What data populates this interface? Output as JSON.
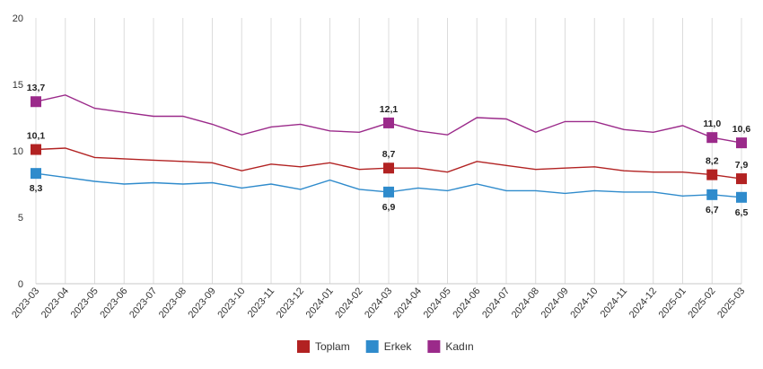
{
  "chart_data": {
    "type": "line",
    "yticks": [
      "0",
      "5",
      "10",
      "15",
      "20"
    ],
    "ylim": [
      0,
      20
    ],
    "grid": "vertical",
    "legend_placement": "bottom-center",
    "categories": [
      "2023-03",
      "2023-04",
      "2023-05",
      "2023-06",
      "2023-07",
      "2023-08",
      "2023-09",
      "2023-10",
      "2023-11",
      "2023-12",
      "2024-01",
      "2024-02",
      "2024-03",
      "2024-04",
      "2024-05",
      "2024-06",
      "2024-07",
      "2024-08",
      "2024-09",
      "2024-10",
      "2024-11",
      "2024-12",
      "2025-01",
      "2025-02",
      "2025-03"
    ],
    "series": [
      {
        "name": "Toplam",
        "color": "#b22222",
        "values": [
          10.1,
          10.2,
          9.5,
          9.4,
          9.3,
          9.2,
          9.1,
          8.5,
          9.0,
          8.8,
          9.1,
          8.6,
          8.7,
          8.7,
          8.4,
          9.2,
          8.9,
          8.6,
          8.7,
          8.8,
          8.5,
          8.4,
          8.4,
          8.2,
          7.9
        ],
        "markers": [
          0,
          12,
          23,
          24
        ],
        "labels": [
          {
            "index": 0,
            "text": "10,1",
            "pos": "above"
          },
          {
            "index": 12,
            "text": "8,7",
            "pos": "above"
          },
          {
            "index": 23,
            "text": "8,2",
            "pos": "above"
          },
          {
            "index": 24,
            "text": "7,9",
            "pos": "above"
          }
        ]
      },
      {
        "name": "Erkek",
        "color": "#2f8bcc",
        "values": [
          8.3,
          8.0,
          7.7,
          7.5,
          7.6,
          7.5,
          7.6,
          7.2,
          7.5,
          7.1,
          7.8,
          7.1,
          6.9,
          7.2,
          7.0,
          7.5,
          7.0,
          7.0,
          6.8,
          7.0,
          6.9,
          6.9,
          6.6,
          6.7,
          6.5
        ],
        "markers": [
          0,
          12,
          23,
          24
        ],
        "labels": [
          {
            "index": 0,
            "text": "8,3",
            "pos": "below"
          },
          {
            "index": 12,
            "text": "6,9",
            "pos": "below"
          },
          {
            "index": 23,
            "text": "6,7",
            "pos": "below"
          },
          {
            "index": 24,
            "text": "6,5",
            "pos": "below"
          }
        ]
      },
      {
        "name": "Kadın",
        "color": "#9b2a8a",
        "values": [
          13.7,
          14.2,
          13.2,
          12.9,
          12.6,
          12.6,
          12.0,
          11.2,
          11.8,
          12.0,
          11.5,
          11.4,
          12.1,
          11.5,
          11.2,
          12.5,
          12.4,
          11.4,
          12.2,
          12.2,
          11.6,
          11.4,
          11.9,
          11.0,
          10.6
        ],
        "markers": [
          0,
          12,
          23,
          24
        ],
        "labels": [
          {
            "index": 0,
            "text": "13,7",
            "pos": "above"
          },
          {
            "index": 12,
            "text": "12,1",
            "pos": "above"
          },
          {
            "index": 23,
            "text": "11,0",
            "pos": "above"
          },
          {
            "index": 24,
            "text": "10,6",
            "pos": "above"
          }
        ]
      }
    ]
  }
}
